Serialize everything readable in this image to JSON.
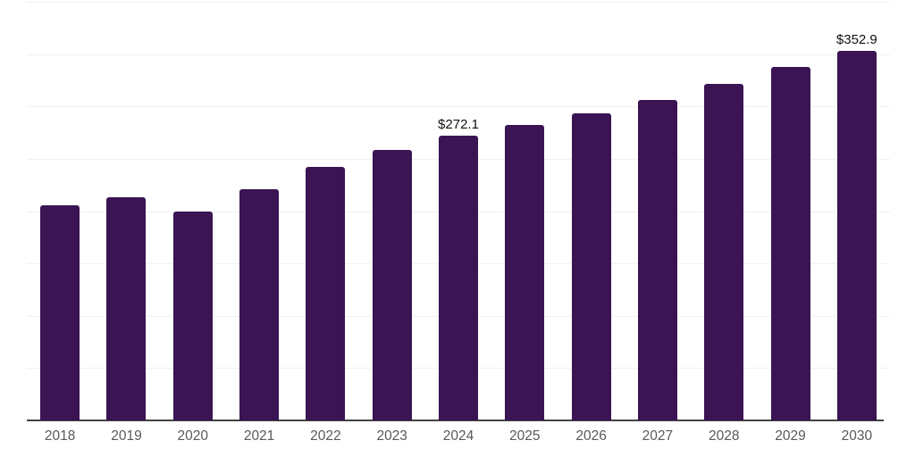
{
  "chart_data": {
    "type": "bar",
    "title": "",
    "xlabel": "",
    "ylabel": "",
    "categories": [
      "2018",
      "2019",
      "2020",
      "2021",
      "2022",
      "2023",
      "2024",
      "2025",
      "2026",
      "2027",
      "2028",
      "2029",
      "2030"
    ],
    "values": [
      205.6,
      213.3,
      199.6,
      220.9,
      242.2,
      258.5,
      272.1,
      282.3,
      293.4,
      306.2,
      321.6,
      337.8,
      352.9
    ],
    "point_labels": {
      "2024": "$272.1",
      "2030": "$352.9"
    },
    "ylim": [
      0,
      400
    ],
    "gridline_step": 50,
    "grid": "on",
    "legend": "none",
    "y_axis_tick_labels": "none",
    "colors": {
      "bar": "#3a1453",
      "gridline": "#f0f0f0",
      "axis_line": "#444444",
      "x_tick_label": "#595959",
      "data_label": "#111111",
      "background": "#ffffff"
    }
  }
}
